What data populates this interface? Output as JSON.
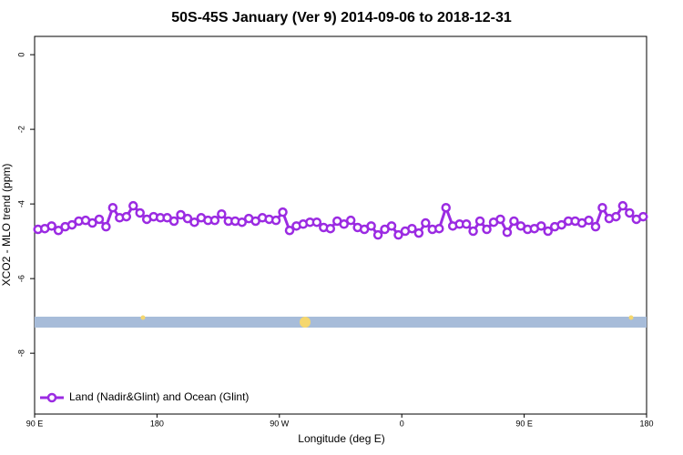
{
  "chart_data": {
    "type": "line",
    "title": "50S-45S January (Ver 9)   2014-09-06 to 2018-12-31",
    "x_label": "Longitude (deg E)",
    "y_label": "XCO2 - MLO trend (ppm)",
    "xlim": [
      90,
      540
    ],
    "ylim": [
      -9.63,
      0.49
    ],
    "xticks": [
      {
        "value": 90,
        "label": "90 E"
      },
      {
        "value": 180,
        "label": "180"
      },
      {
        "value": 270,
        "label": "90 W"
      },
      {
        "value": 360,
        "label": "0"
      },
      {
        "value": 450,
        "label": "90 E"
      },
      {
        "value": 540,
        "label": "180"
      }
    ],
    "yticks": [
      0,
      -2,
      -4,
      -6,
      -8
    ],
    "legend_position": "bottom-left",
    "x": [
      92.5,
      97.5,
      102.5,
      107.5,
      112.5,
      117.5,
      122.5,
      127.5,
      132.5,
      137.5,
      142.5,
      147.5,
      152.5,
      157.5,
      162.5,
      167.5,
      172.5,
      177.5,
      182.5,
      187.5,
      192.5,
      197.5,
      202.5,
      207.5,
      212.5,
      217.5,
      222.5,
      227.5,
      232.5,
      237.5,
      242.5,
      247.5,
      252.5,
      257.5,
      262.5,
      267.5,
      272.5,
      277.5,
      282.5,
      287.5,
      292.5,
      297.5,
      302.5,
      307.5,
      312.5,
      317.5,
      322.5,
      327.5,
      332.5,
      337.5,
      342.5,
      347.5,
      352.5,
      357.5,
      362.5,
      367.5,
      372.5,
      377.5,
      382.5,
      387.5,
      392.5,
      397.5,
      402.5,
      407.5,
      412.5,
      417.5,
      422.5,
      427.5,
      432.5,
      437.5,
      442.5,
      447.5,
      452.5,
      457.5,
      462.5,
      467.5,
      472.5,
      477.5,
      482.5,
      487.5,
      492.5,
      497.5,
      502.5,
      507.5,
      512.5,
      517.5,
      522.5,
      527.5,
      532.5,
      537.5
    ],
    "series": [
      {
        "name": "Land (Nadir&Glint) and Ocean (Glint)",
        "color": "#9b2be2",
        "values": [
          -4.68,
          -4.66,
          -4.59,
          -4.71,
          -4.61,
          -4.56,
          -4.46,
          -4.44,
          -4.51,
          -4.41,
          -4.61,
          -4.1,
          -4.37,
          -4.34,
          -4.05,
          -4.24,
          -4.41,
          -4.34,
          -4.37,
          -4.37,
          -4.46,
          -4.29,
          -4.39,
          -4.49,
          -4.37,
          -4.44,
          -4.44,
          -4.27,
          -4.46,
          -4.46,
          -4.49,
          -4.39,
          -4.46,
          -4.37,
          -4.41,
          -4.44,
          -4.22,
          -4.71,
          -4.59,
          -4.54,
          -4.49,
          -4.49,
          -4.63,
          -4.66,
          -4.46,
          -4.54,
          -4.44,
          -4.63,
          -4.68,
          -4.59,
          -4.83,
          -4.68,
          -4.59,
          -4.83,
          -4.73,
          -4.66,
          -4.78,
          -4.51,
          -4.68,
          -4.66,
          -4.1,
          -4.59,
          -4.54,
          -4.54,
          -4.73,
          -4.46,
          -4.68,
          -4.49,
          -4.41,
          -4.76,
          -4.46,
          -4.59,
          -4.68,
          -4.66,
          -4.59,
          -4.73,
          -4.61,
          -4.56,
          -4.46,
          -4.46,
          -4.51,
          -4.44,
          -4.61,
          -4.1,
          -4.39,
          -4.34,
          -4.05,
          -4.24,
          -4.41,
          -4.34
        ]
      }
    ]
  }
}
